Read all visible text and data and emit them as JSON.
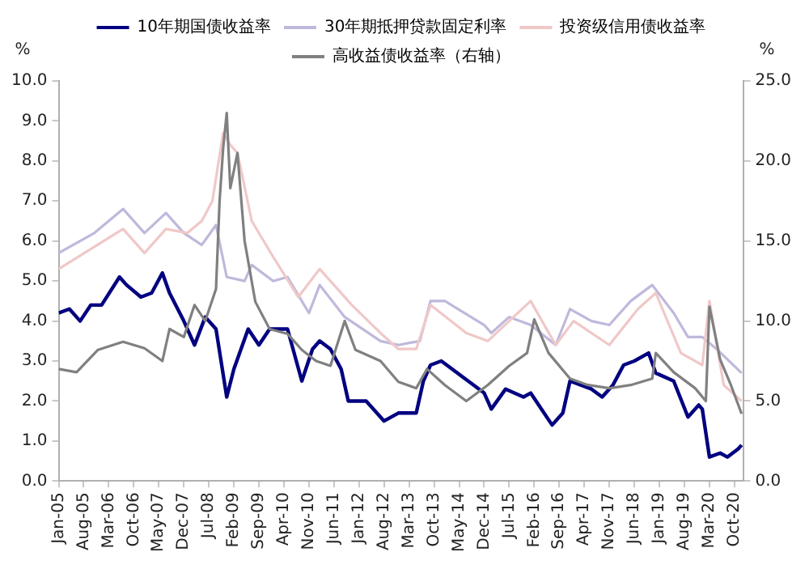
{
  "chart_data": {
    "type": "line",
    "ylabel": "%",
    "y2label": "%",
    "legend": "top",
    "grid": false,
    "marker": "none",
    "line_style": "solid",
    "xlim": [
      "2005-01",
      "2020-12-20"
    ],
    "xticks": [
      {
        "value": "2005-01",
        "label": "Jan-05"
      },
      {
        "value": "2005-08",
        "label": "Aug-05"
      },
      {
        "value": "2006-03",
        "label": "Mar-06"
      },
      {
        "value": "2006-10",
        "label": "Oct-06"
      },
      {
        "value": "2007-05",
        "label": "May-07"
      },
      {
        "value": "2007-12",
        "label": "Dec-07"
      },
      {
        "value": "2008-07",
        "label": "Jul-08"
      },
      {
        "value": "2009-02",
        "label": "Feb-09"
      },
      {
        "value": "2009-09",
        "label": "Sep-09"
      },
      {
        "value": "2010-04",
        "label": "Apr-10"
      },
      {
        "value": "2010-11",
        "label": "Nov-10"
      },
      {
        "value": "2011-06",
        "label": "Jun-11"
      },
      {
        "value": "2012-01",
        "label": "Jan-12"
      },
      {
        "value": "2012-08",
        "label": "Aug-12"
      },
      {
        "value": "2013-03",
        "label": "Mar-13"
      },
      {
        "value": "2013-10",
        "label": "Oct-13"
      },
      {
        "value": "2014-05",
        "label": "May-14"
      },
      {
        "value": "2014-12",
        "label": "Dec-14"
      },
      {
        "value": "2015-07",
        "label": "Jul-15"
      },
      {
        "value": "2016-02",
        "label": "Feb-16"
      },
      {
        "value": "2016-09",
        "label": "Sep-16"
      },
      {
        "value": "2017-04",
        "label": "Apr-17"
      },
      {
        "value": "2017-11",
        "label": "Nov-17"
      },
      {
        "value": "2018-06",
        "label": "Jun-18"
      },
      {
        "value": "2019-01",
        "label": "Jan-19"
      },
      {
        "value": "2019-08",
        "label": "Aug-19"
      },
      {
        "value": "2020-03",
        "label": "Mar-20"
      },
      {
        "value": "2020-10",
        "label": "Oct-20"
      }
    ],
    "ylim": [
      0,
      10
    ],
    "yticks": [
      {
        "value": 0,
        "label": "0.0"
      },
      {
        "value": 1,
        "label": "1.0"
      },
      {
        "value": 2,
        "label": "2.0"
      },
      {
        "value": 3,
        "label": "3.0"
      },
      {
        "value": 4,
        "label": "4.0"
      },
      {
        "value": 5,
        "label": "5.0"
      },
      {
        "value": 6,
        "label": "6.0"
      },
      {
        "value": 7,
        "label": "7.0"
      },
      {
        "value": 8,
        "label": "8.0"
      },
      {
        "value": 9,
        "label": "9.0"
      },
      {
        "value": 10,
        "label": "10.0"
      }
    ],
    "y2lim": [
      0,
      25
    ],
    "y2ticks": [
      {
        "value": 0,
        "label": "0.0"
      },
      {
        "value": 5,
        "label": "5.0"
      },
      {
        "value": 10,
        "label": "10.0"
      },
      {
        "value": 15,
        "label": "15.0"
      },
      {
        "value": 20,
        "label": "20.0"
      },
      {
        "value": 25,
        "label": "25.0"
      }
    ],
    "series": [
      {
        "name": "10年期国债收益率",
        "color": "#000080",
        "x": [
          "2005-01",
          "2005-04",
          "2005-07",
          "2005-10",
          "2006-01",
          "2006-06",
          "2006-08",
          "2006-12",
          "2007-03",
          "2007-06",
          "2007-08",
          "2007-12",
          "2008-03",
          "2008-06",
          "2008-09",
          "2008-12",
          "2009-02",
          "2009-06",
          "2009-09",
          "2009-12",
          "2010-05",
          "2010-09",
          "2010-12",
          "2011-02",
          "2011-05",
          "2011-08",
          "2011-10",
          "2012-03",
          "2012-08",
          "2012-12",
          "2013-05",
          "2013-07",
          "2013-09",
          "2013-12",
          "2014-06",
          "2014-12",
          "2015-02",
          "2015-06",
          "2015-11",
          "2016-01",
          "2016-07",
          "2016-10",
          "2016-12",
          "2017-06",
          "2017-09",
          "2017-12",
          "2018-03",
          "2018-06",
          "2018-10",
          "2018-12",
          "2019-05",
          "2019-09",
          "2019-12",
          "2020-01",
          "2020-03",
          "2020-06",
          "2020-08",
          "2020-11",
          "2020-12"
        ],
        "values": [
          4.2,
          4.3,
          4.0,
          4.4,
          4.4,
          5.1,
          4.9,
          4.6,
          4.7,
          5.2,
          4.7,
          4.0,
          3.4,
          4.1,
          3.8,
          2.1,
          2.8,
          3.8,
          3.4,
          3.8,
          3.8,
          2.5,
          3.3,
          3.5,
          3.3,
          2.8,
          2.0,
          2.0,
          1.5,
          1.7,
          1.7,
          2.5,
          2.9,
          3.0,
          2.6,
          2.2,
          1.8,
          2.3,
          2.1,
          2.2,
          1.4,
          1.7,
          2.5,
          2.3,
          2.1,
          2.4,
          2.9,
          3.0,
          3.2,
          2.7,
          2.5,
          1.6,
          1.9,
          1.8,
          0.6,
          0.7,
          0.6,
          0.8,
          0.9
        ]
      },
      {
        "name": "30年期抵押贷款固定利率",
        "color": "#c0b8dc",
        "x": [
          "2005-01",
          "2005-11",
          "2006-07",
          "2007-01",
          "2007-07",
          "2007-12",
          "2008-05",
          "2008-09",
          "2008-12",
          "2009-05",
          "2009-07",
          "2010-01",
          "2010-05",
          "2010-11",
          "2011-02",
          "2011-09",
          "2012-07",
          "2012-12",
          "2013-06",
          "2013-09",
          "2014-01",
          "2014-12",
          "2015-02",
          "2015-07",
          "2016-01",
          "2016-08",
          "2016-12",
          "2017-06",
          "2017-11",
          "2018-05",
          "2018-11",
          "2019-05",
          "2019-09",
          "2020-01",
          "2020-05",
          "2020-12"
        ],
        "values": [
          5.7,
          6.2,
          6.8,
          6.2,
          6.7,
          6.2,
          5.9,
          6.4,
          5.1,
          5.0,
          5.4,
          5.0,
          5.1,
          4.2,
          4.9,
          4.1,
          3.5,
          3.4,
          3.5,
          4.5,
          4.5,
          3.9,
          3.7,
          4.1,
          3.9,
          3.4,
          4.3,
          4.0,
          3.9,
          4.5,
          4.9,
          4.2,
          3.6,
          3.6,
          3.3,
          2.7
        ]
      },
      {
        "name": "投资级信用债收益率",
        "color": "#f0c8c8",
        "x": [
          "2005-01",
          "2006-07",
          "2007-01",
          "2007-07",
          "2008-01",
          "2008-05",
          "2008-08",
          "2008-11",
          "2009-01",
          "2009-03",
          "2009-07",
          "2010-01",
          "2010-08",
          "2011-02",
          "2011-11",
          "2012-07",
          "2012-12",
          "2013-05",
          "2013-09",
          "2014-07",
          "2015-01",
          "2015-07",
          "2016-01",
          "2016-08",
          "2017-01",
          "2017-11",
          "2018-07",
          "2018-12",
          "2019-07",
          "2020-01",
          "2020-03",
          "2020-07",
          "2020-12"
        ],
        "values": [
          5.3,
          6.3,
          5.7,
          6.3,
          6.2,
          6.5,
          7.0,
          8.7,
          8.4,
          8.2,
          6.5,
          5.6,
          4.6,
          5.3,
          4.4,
          3.7,
          3.3,
          3.3,
          4.4,
          3.7,
          3.5,
          4.0,
          4.5,
          3.4,
          4.0,
          3.4,
          4.3,
          4.7,
          3.2,
          2.9,
          4.5,
          2.4,
          2.0
        ]
      },
      {
        "name": "高收益债收益率（右轴）",
        "color": "#808080",
        "axis": "y2",
        "x": [
          "2005-01",
          "2005-06",
          "2005-12",
          "2006-07",
          "2007-01",
          "2007-06",
          "2007-08",
          "2007-12",
          "2008-03",
          "2008-06",
          "2008-09",
          "2008-10",
          "2008-11",
          "2008-12",
          "2009-01",
          "2009-03",
          "2009-05",
          "2009-08",
          "2009-12",
          "2010-05",
          "2010-09",
          "2011-01",
          "2011-05",
          "2011-09",
          "2011-12",
          "2012-07",
          "2012-12",
          "2013-05",
          "2013-08",
          "2014-01",
          "2014-07",
          "2015-01",
          "2015-07",
          "2015-12",
          "2016-02",
          "2016-06",
          "2016-12",
          "2017-05",
          "2017-11",
          "2018-05",
          "2018-11",
          "2018-12",
          "2019-05",
          "2019-11",
          "2020-02",
          "2020-03",
          "2020-06",
          "2020-09",
          "2020-12"
        ],
        "values": [
          7.0,
          6.8,
          8.2,
          8.7,
          8.3,
          7.5,
          9.5,
          9.0,
          11,
          10,
          12,
          17.5,
          20.8,
          23,
          18.3,
          20.5,
          15,
          11.2,
          9.5,
          9.2,
          8.2,
          7.5,
          7.2,
          10,
          8.2,
          7.5,
          6.2,
          5.8,
          7,
          6,
          5,
          6,
          7.2,
          8,
          10.1,
          8,
          6.4,
          6,
          5.8,
          6,
          6.4,
          8,
          6.8,
          5.8,
          5,
          10.9,
          7.6,
          6,
          4.2
        ]
      }
    ]
  }
}
